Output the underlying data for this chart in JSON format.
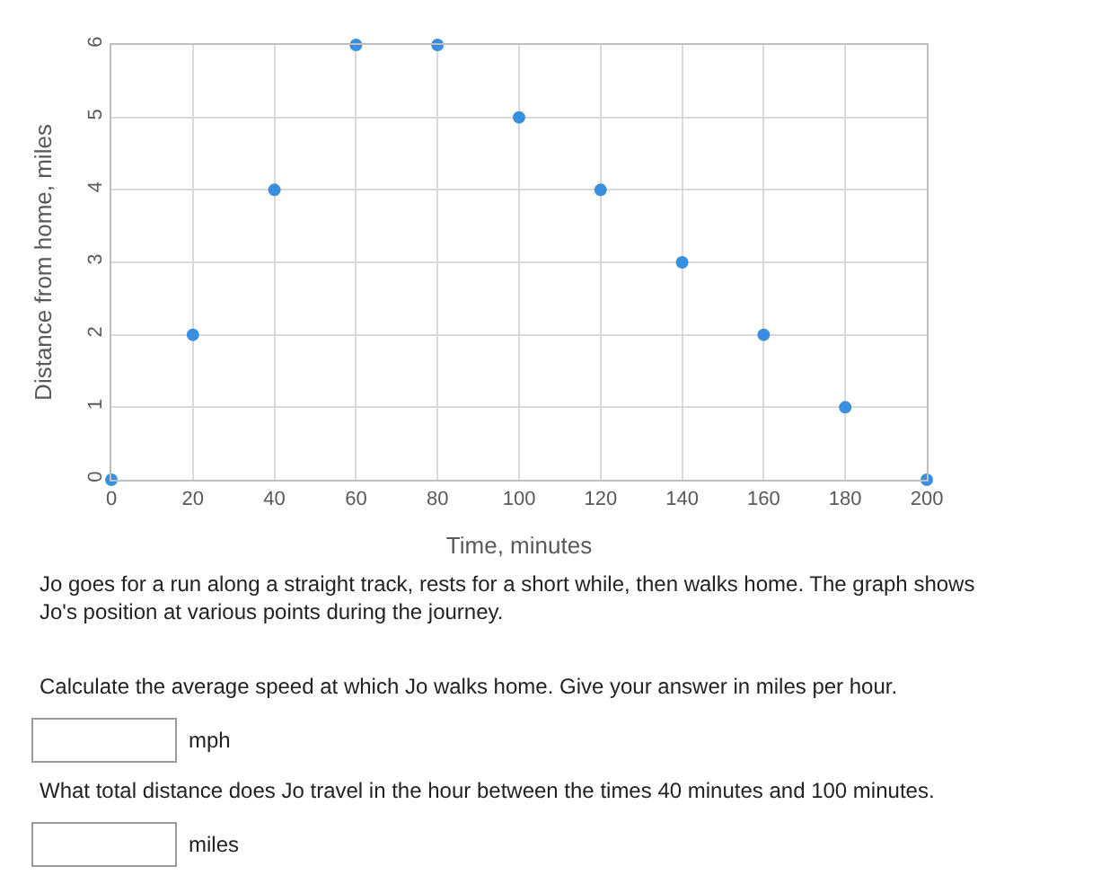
{
  "chart_data": {
    "type": "scatter",
    "xlabel": "Time, minutes",
    "ylabel": "Distance from home, miles",
    "x": [
      0,
      20,
      40,
      60,
      80,
      100,
      120,
      140,
      160,
      180,
      200
    ],
    "values": [
      0,
      2,
      4,
      6,
      6,
      5,
      4,
      3,
      2,
      1,
      0
    ],
    "color": "#3a8ede",
    "marker": "circle",
    "grid": true,
    "legend": false,
    "xlim": [
      0,
      200
    ],
    "xticks": [
      0,
      20,
      40,
      60,
      80,
      100,
      120,
      140,
      160,
      180,
      200
    ],
    "ylim": [
      0,
      6
    ],
    "yticks": [
      0,
      1,
      2,
      3,
      4,
      5,
      6
    ],
    "annotations": [
      "Jo goes for a run along a straight track, rests for a short while, then walks home. The graph shows Jo's position at various points during the journey.",
      "Calculate the average speed at which Jo walks home. Give your answer in miles per hour.",
      "mph",
      "What total distance does Jo travel in the hour between the times 40 minutes and 100 minutes.",
      "miles"
    ]
  }
}
